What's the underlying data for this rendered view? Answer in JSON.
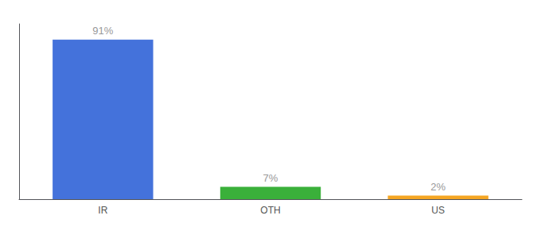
{
  "chart_data": {
    "type": "bar",
    "categories": [
      "IR",
      "OTH",
      "US"
    ],
    "values": [
      91,
      7,
      2
    ],
    "value_labels": [
      "91%",
      "7%",
      "2%"
    ],
    "colors": [
      "#4472db",
      "#3ab03a",
      "#f5a623"
    ],
    "ylim": [
      0,
      100
    ],
    "data_labels": true,
    "tick_labels": "x",
    "grid": false
  }
}
